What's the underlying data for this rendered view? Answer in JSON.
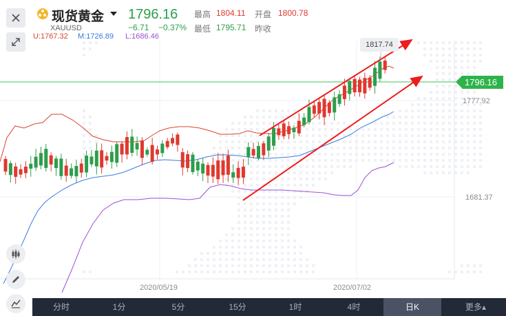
{
  "header": {
    "title": "现货黄金",
    "symbol": "XAUUSD",
    "price": "1796.16",
    "change": "−6.71",
    "change_percent": "−0.37%",
    "high_label": "最高",
    "high_value": "1804.11",
    "open_label": "开盘",
    "open_value": "1800.78",
    "low_label": "最低",
    "low_value": "1795.71",
    "prev_close_label": "昨收"
  },
  "indicator": {
    "upper": "U:1767.32",
    "middle": "M:1726.89",
    "lower": "L:1686.46"
  },
  "chart": {
    "high_tag": "1817.74",
    "last_tag": "1796.16",
    "y_tick_1": "1777.92",
    "y_tick_2": "1681.37",
    "x_tick_1": "2020/05/19",
    "x_tick_2": "2020/07/02"
  },
  "periods": {
    "items": [
      "分时",
      "1分",
      "5分",
      "15分",
      "1时",
      "4时",
      "日K",
      "更多▴"
    ],
    "active": "日K"
  },
  "icons": [
    "close-icon",
    "expand-icon",
    "candle-icon",
    "draw-pen-icon",
    "indicator-icon",
    "gold-coin-icon",
    "dropdown-caret-icon"
  ],
  "colors": {
    "up": "#e0382f",
    "down": "#2c9e4b",
    "upper_band": "#d9442e",
    "middle_band": "#3a7be0",
    "lower_band": "#9a50d6",
    "channel": "#ee1c1c"
  }
}
